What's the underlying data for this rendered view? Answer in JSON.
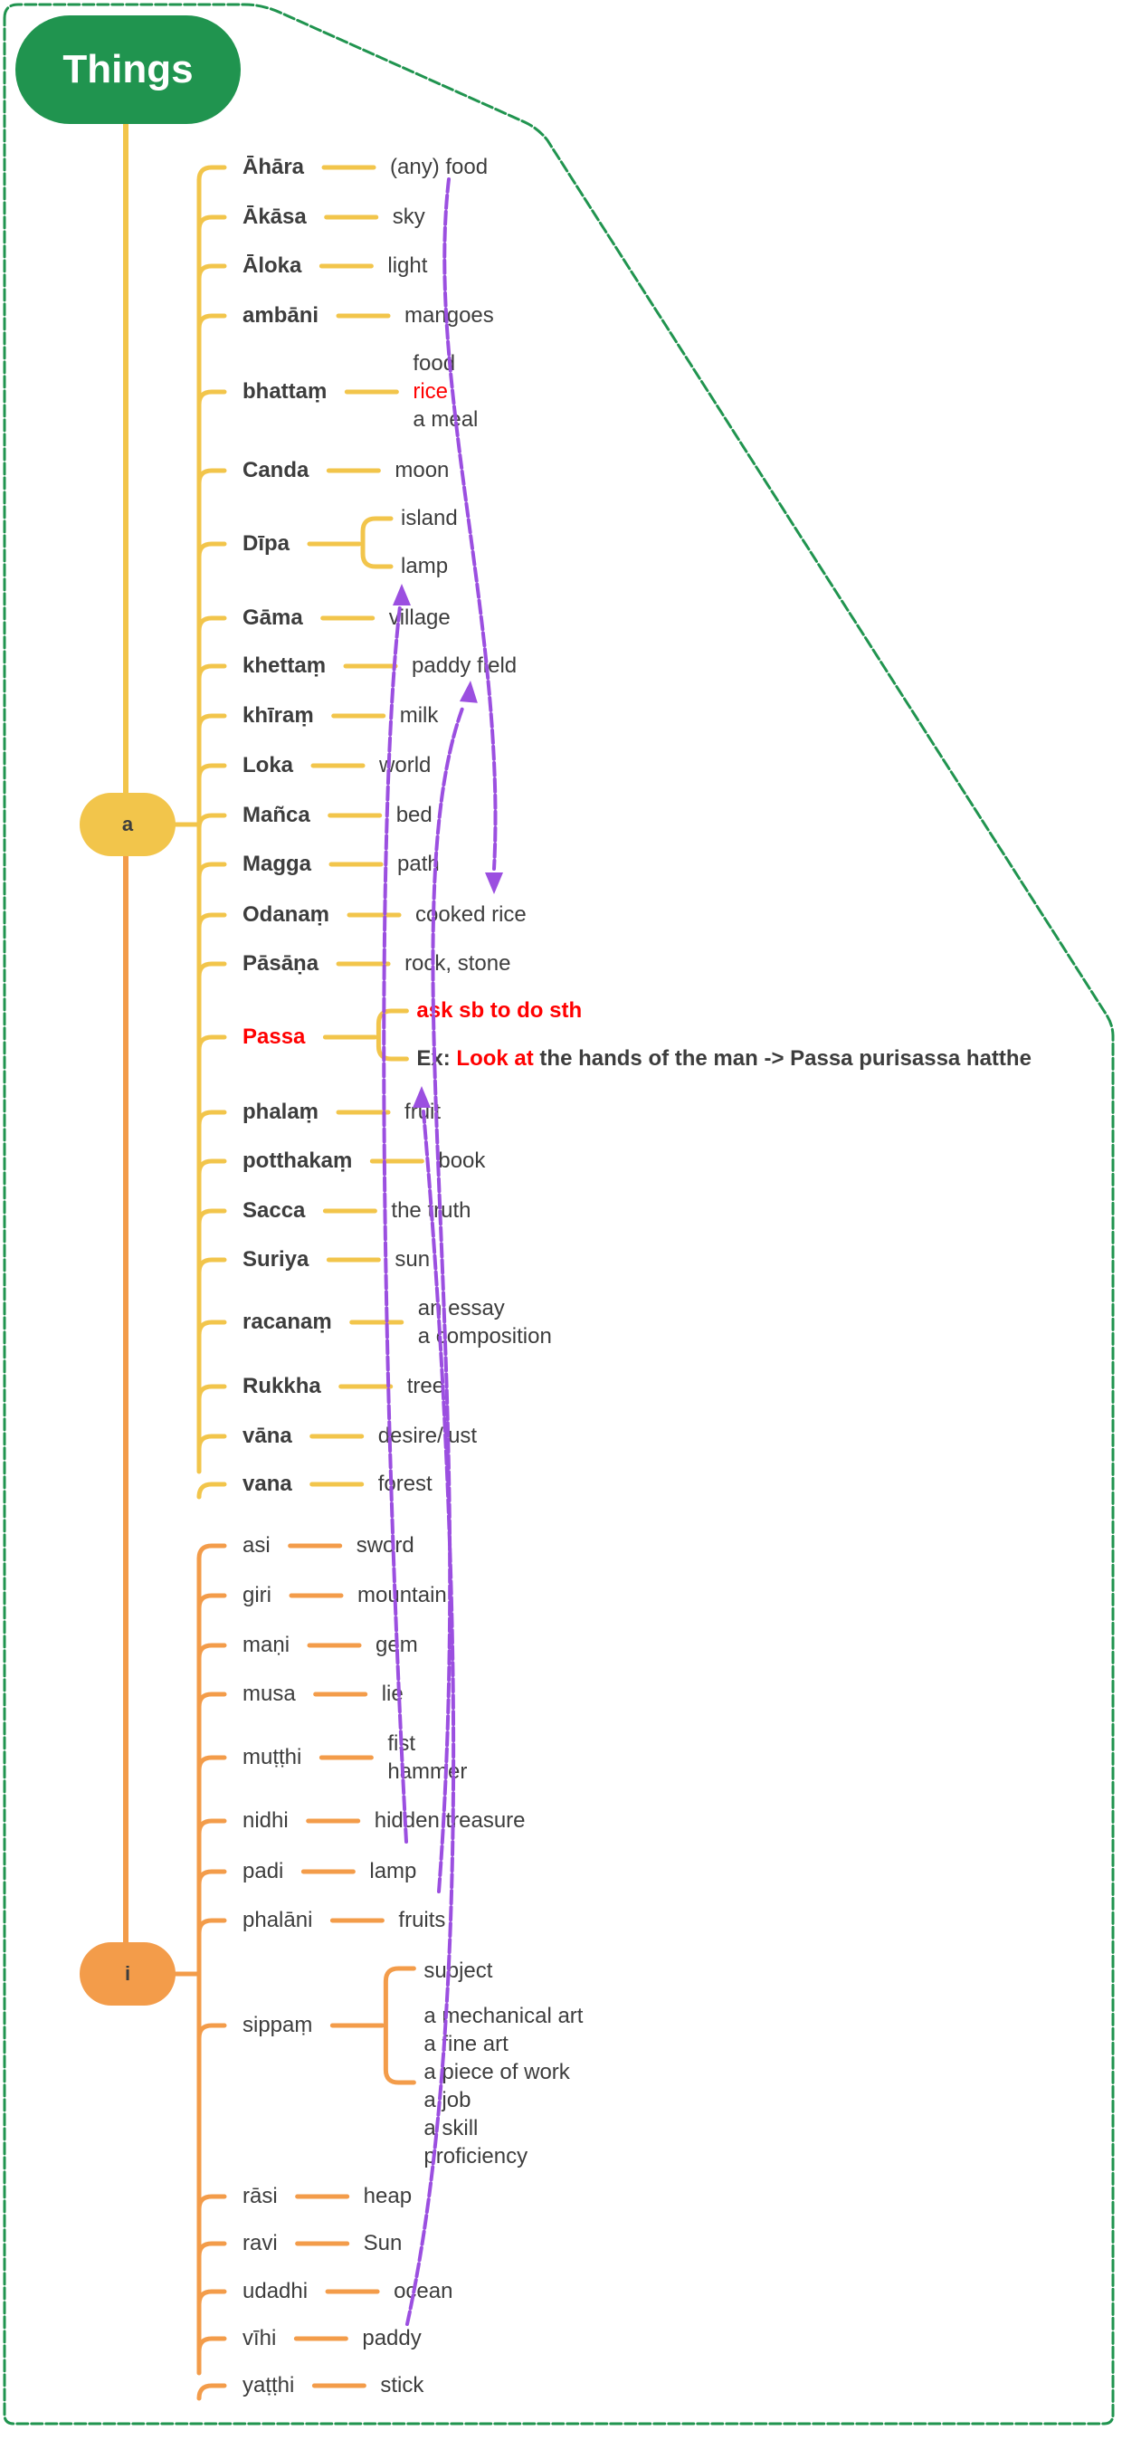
{
  "root": {
    "label": "Things",
    "color": "#20944f"
  },
  "colors": {
    "text": "#3d3d3d",
    "highlight": "#ff0000",
    "arrows": "#9b4fe0",
    "boundary": "#20944f"
  },
  "groups": [
    {
      "label": "a",
      "color": "#f2c54b",
      "bold": true,
      "rows": [
        {
          "term": "Āhāra",
          "meanings": [
            {
              "text": "(any) food"
            }
          ]
        },
        {
          "term": "Ākāsa",
          "meanings": [
            {
              "text": "sky"
            }
          ]
        },
        {
          "term": "Āloka",
          "meanings": [
            {
              "text": "light"
            }
          ]
        },
        {
          "term": "ambāni",
          "meanings": [
            {
              "text": "mangoes"
            }
          ]
        },
        {
          "term": "bhattaṃ",
          "meanings": [
            {
              "text": "food"
            },
            {
              "text": "rice",
              "color": "#ff0000"
            },
            {
              "text": "a meal"
            }
          ]
        },
        {
          "term": "Canda",
          "meanings": [
            {
              "text": "moon"
            }
          ]
        },
        {
          "term": "Dīpa",
          "branches": [
            [
              {
                "text": "island"
              }
            ],
            [
              {
                "text": "lamp"
              }
            ]
          ]
        },
        {
          "term": "Gāma",
          "meanings": [
            {
              "text": "village"
            }
          ]
        },
        {
          "term": "khettaṃ",
          "meanings": [
            {
              "text": "paddy field"
            }
          ]
        },
        {
          "term": "khīraṃ",
          "meanings": [
            {
              "text": "milk"
            }
          ]
        },
        {
          "term": "Loka",
          "meanings": [
            {
              "text": "world"
            }
          ]
        },
        {
          "term": "Mañca",
          "meanings": [
            {
              "text": "bed"
            }
          ]
        },
        {
          "term": "Magga",
          "meanings": [
            {
              "text": "path"
            }
          ]
        },
        {
          "term": "Odanaṃ",
          "meanings": [
            {
              "text": "cooked rice"
            }
          ]
        },
        {
          "term": "Pāsāṇa",
          "meanings": [
            {
              "text": "rock, stone"
            }
          ]
        },
        {
          "term": "Passa",
          "color": "#ff0000",
          "branches": [
            [
              {
                "text": "ask sb to do sth",
                "color": "#ff0000",
                "bold": true
              }
            ],
            [
              {
                "segments": [
                  {
                    "text": "Ex: ",
                    "bold": true
                  },
                  {
                    "text": "Look at",
                    "color": "#ff0000",
                    "bold": true
                  },
                  {
                    "text": " the hands of the man -> Passa purisassa hatthe",
                    "bold": true
                  }
                ]
              }
            ]
          ]
        },
        {
          "term": "phalaṃ",
          "meanings": [
            {
              "text": "fruit"
            }
          ]
        },
        {
          "term": "potthakaṃ",
          "meanings": [
            {
              "text": "book"
            }
          ]
        },
        {
          "term": "Sacca",
          "meanings": [
            {
              "text": "the truth"
            }
          ]
        },
        {
          "term": "Suriya",
          "meanings": [
            {
              "text": "sun"
            }
          ]
        },
        {
          "term": "racanaṃ",
          "meanings": [
            {
              "text": "an essay"
            },
            {
              "text": "a composition"
            }
          ]
        },
        {
          "term": "Rukkha",
          "meanings": [
            {
              "text": "tree"
            }
          ]
        },
        {
          "term": "vāna",
          "meanings": [
            {
              "text": "desire/lust"
            }
          ]
        },
        {
          "term": "vana",
          "meanings": [
            {
              "text": "forest"
            }
          ]
        }
      ]
    },
    {
      "label": "i",
      "color": "#f39c4a",
      "bold": false,
      "rows": [
        {
          "term": "asi",
          "meanings": [
            {
              "text": "sword"
            }
          ]
        },
        {
          "term": "giri",
          "meanings": [
            {
              "text": "mountain"
            }
          ]
        },
        {
          "term": "maṇi",
          "meanings": [
            {
              "text": "gem"
            }
          ]
        },
        {
          "term": "musa",
          "meanings": [
            {
              "text": "lie"
            }
          ]
        },
        {
          "term": "muṭṭhi",
          "meanings": [
            {
              "text": "fist"
            },
            {
              "text": "hammer"
            }
          ]
        },
        {
          "term": "nidhi",
          "meanings": [
            {
              "text": "hidden treasure"
            }
          ]
        },
        {
          "term": "padi",
          "meanings": [
            {
              "text": "lamp"
            }
          ]
        },
        {
          "term": "phalāni",
          "meanings": [
            {
              "text": "fruits"
            }
          ]
        },
        {
          "term": "sippaṃ",
          "branches": [
            [
              {
                "text": "subject"
              }
            ],
            [
              {
                "text": "a mechanical art"
              },
              {
                "text": "a fine art"
              },
              {
                "text": "a piece of work"
              },
              {
                "text": "a job"
              },
              {
                "text": "a skill"
              },
              {
                "text": "proficiency"
              }
            ]
          ]
        },
        {
          "term": "rāsi",
          "meanings": [
            {
              "text": "heap"
            }
          ]
        },
        {
          "term": "ravi",
          "meanings": [
            {
              "text": "Sun"
            }
          ]
        },
        {
          "term": "udadhi",
          "meanings": [
            {
              "text": "ocean"
            }
          ]
        },
        {
          "term": "vīhi",
          "meanings": [
            {
              "text": "paddy"
            }
          ]
        },
        {
          "term": "yaṭṭhi",
          "meanings": [
            {
              "text": "stick"
            }
          ]
        }
      ]
    }
  ]
}
